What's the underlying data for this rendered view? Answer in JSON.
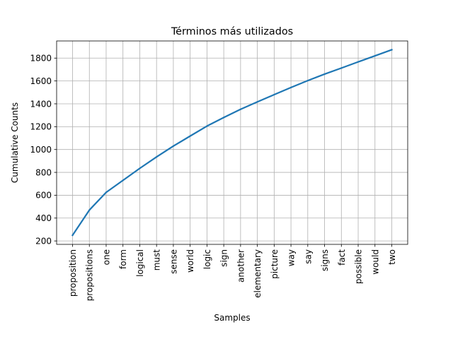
{
  "chart_data": {
    "type": "line",
    "title": "Términos más utilizados",
    "xlabel": "Samples",
    "ylabel": "Cumulative Counts",
    "categories": [
      "proposition",
      "propositions",
      "one",
      "form",
      "logical",
      "must",
      "sense",
      "world",
      "logic",
      "sign",
      "another",
      "elementary",
      "picture",
      "way",
      "say",
      "signs",
      "fact",
      "possible",
      "would",
      "two"
    ],
    "values": [
      250,
      470,
      625,
      730,
      835,
      935,
      1030,
      1118,
      1205,
      1280,
      1352,
      1417,
      1480,
      1543,
      1603,
      1660,
      1713,
      1767,
      1820,
      1873
    ],
    "ylim": [
      170,
      1950
    ],
    "yticks": [
      200,
      400,
      600,
      800,
      1000,
      1200,
      1400,
      1600,
      1800
    ],
    "grid": true,
    "line_color": "#1f77b4"
  }
}
